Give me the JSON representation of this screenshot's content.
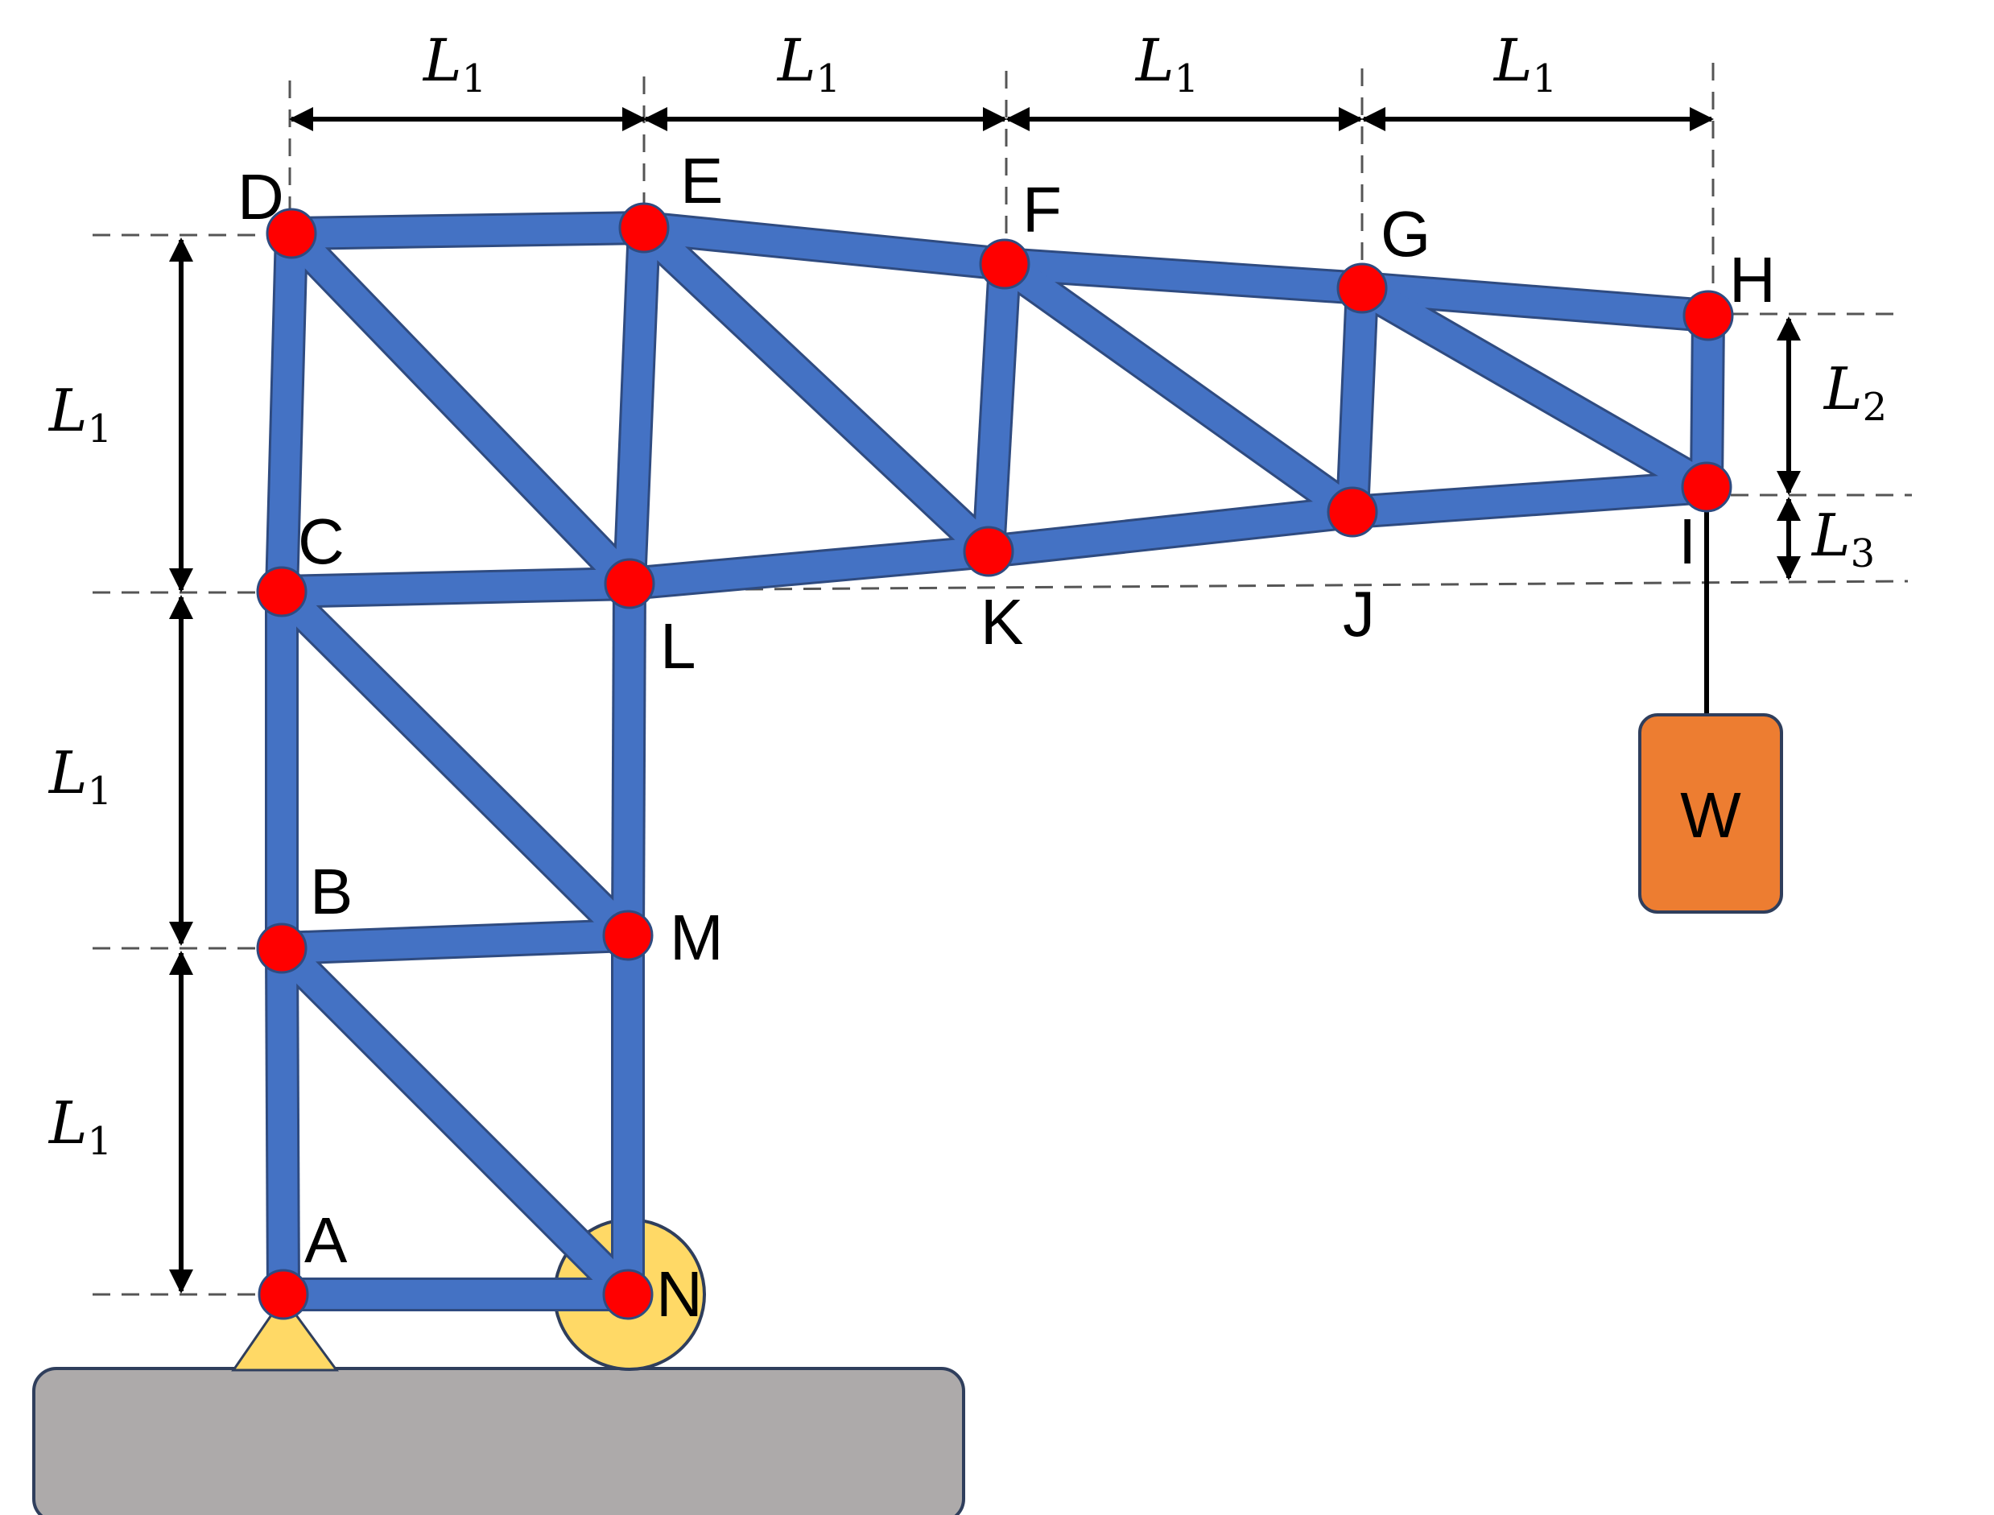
{
  "nodes": [
    {
      "id": "A",
      "label": "A"
    },
    {
      "id": "B",
      "label": "B"
    },
    {
      "id": "C",
      "label": "C"
    },
    {
      "id": "D",
      "label": "D"
    },
    {
      "id": "E",
      "label": "E"
    },
    {
      "id": "F",
      "label": "F"
    },
    {
      "id": "G",
      "label": "G"
    },
    {
      "id": "H",
      "label": "H"
    },
    {
      "id": "I",
      "label": "I"
    },
    {
      "id": "J",
      "label": "J"
    },
    {
      "id": "K",
      "label": "K"
    },
    {
      "id": "L",
      "label": "L"
    },
    {
      "id": "M",
      "label": "M"
    },
    {
      "id": "N",
      "label": "N"
    }
  ],
  "members": [
    [
      "A",
      "N"
    ],
    [
      "A",
      "B"
    ],
    [
      "B",
      "N"
    ],
    [
      "N",
      "M"
    ],
    [
      "B",
      "M"
    ],
    [
      "B",
      "C"
    ],
    [
      "C",
      "M"
    ],
    [
      "M",
      "L"
    ],
    [
      "C",
      "L"
    ],
    [
      "C",
      "D"
    ],
    [
      "D",
      "L"
    ],
    [
      "L",
      "E"
    ],
    [
      "D",
      "E"
    ],
    [
      "E",
      "K"
    ],
    [
      "E",
      "F"
    ],
    [
      "F",
      "K"
    ],
    [
      "L",
      "K"
    ],
    [
      "K",
      "J"
    ],
    [
      "F",
      "G"
    ],
    [
      "F",
      "J"
    ],
    [
      "G",
      "J"
    ],
    [
      "J",
      "I"
    ],
    [
      "G",
      "H"
    ],
    [
      "G",
      "I"
    ],
    [
      "H",
      "I"
    ]
  ],
  "dimensions": {
    "horizontal": [
      {
        "symbol": "L",
        "subscript": "1"
      },
      {
        "symbol": "L",
        "subscript": "1"
      },
      {
        "symbol": "L",
        "subscript": "1"
      },
      {
        "symbol": "L",
        "subscript": "1"
      }
    ],
    "vertical": [
      {
        "symbol": "L",
        "subscript": "1"
      },
      {
        "symbol": "L",
        "subscript": "1"
      },
      {
        "symbol": "L",
        "subscript": "1"
      }
    ],
    "right": [
      {
        "symbol": "L",
        "subscript": "2"
      },
      {
        "symbol": "L",
        "subscript": "3"
      }
    ]
  },
  "load": {
    "label": "W"
  },
  "supports": {
    "pin_node": "A",
    "roller_node": "N"
  },
  "colors": {
    "member": "#4472c4",
    "member_outline": "#2f4b80",
    "joint": "#ff0000",
    "load_box": "#ed7d31",
    "load_box_outline": "#2f3e5c",
    "ground": "#adaaaa",
    "support": "#ffd966"
  }
}
